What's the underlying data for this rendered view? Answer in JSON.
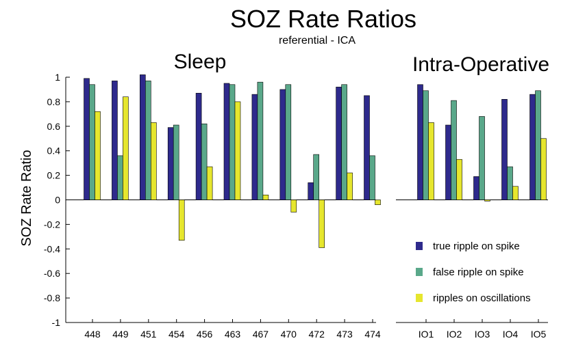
{
  "chart_data": {
    "type": "bar",
    "title": "SOZ Rate Ratios",
    "subtitle": "referential - ICA",
    "ylabel": "SOZ Rate Ratio",
    "ylim": [
      -1,
      1
    ],
    "yticks": [
      1,
      0.8,
      0.6,
      0.4,
      0.2,
      0,
      -0.2,
      -0.4,
      -0.6,
      -0.8,
      -1
    ],
    "ytick_labels": [
      "1",
      "0.8",
      "0.6",
      "0.4",
      "0.2",
      "0",
      "-0.2",
      "-0.4",
      "-0.6",
      "-0.8",
      "-1"
    ],
    "legend_position": "lower-right",
    "series_colors": [
      "#2e2a8c",
      "#5aa88a",
      "#e6e62e"
    ],
    "legend": [
      "true ripple on spike",
      "false ripple on spike",
      "ripples on oscillations"
    ],
    "panels": [
      {
        "title": "Sleep",
        "categories": [
          "448",
          "449",
          "451",
          "454",
          "456",
          "463",
          "467",
          "470",
          "472",
          "473",
          "474"
        ],
        "series": [
          {
            "name": "true ripple on spike",
            "values": [
              0.99,
              0.97,
              1.02,
              0.59,
              0.87,
              0.95,
              0.86,
              0.9,
              0.14,
              0.92,
              0.85
            ]
          },
          {
            "name": "false ripple on spike",
            "values": [
              0.94,
              0.36,
              0.97,
              0.61,
              0.62,
              0.94,
              0.96,
              0.94,
              0.37,
              0.94,
              0.36
            ]
          },
          {
            "name": "ripples on oscillations",
            "values": [
              0.72,
              0.84,
              0.63,
              -0.33,
              0.27,
              0.8,
              0.04,
              -0.1,
              -0.39,
              0.22,
              -0.04
            ]
          }
        ]
      },
      {
        "title": "Intra-Operative",
        "categories": [
          "IO1",
          "IO2",
          "IO3",
          "IO4",
          "IO5"
        ],
        "series": [
          {
            "name": "true ripple on spike",
            "values": [
              0.94,
              0.61,
              0.19,
              0.82,
              0.86
            ]
          },
          {
            "name": "false ripple on spike",
            "values": [
              0.89,
              0.81,
              0.68,
              0.27,
              0.89
            ]
          },
          {
            "name": "ripples on oscillations",
            "values": [
              0.63,
              0.33,
              -0.01,
              0.11,
              0.5
            ]
          }
        ]
      }
    ]
  }
}
